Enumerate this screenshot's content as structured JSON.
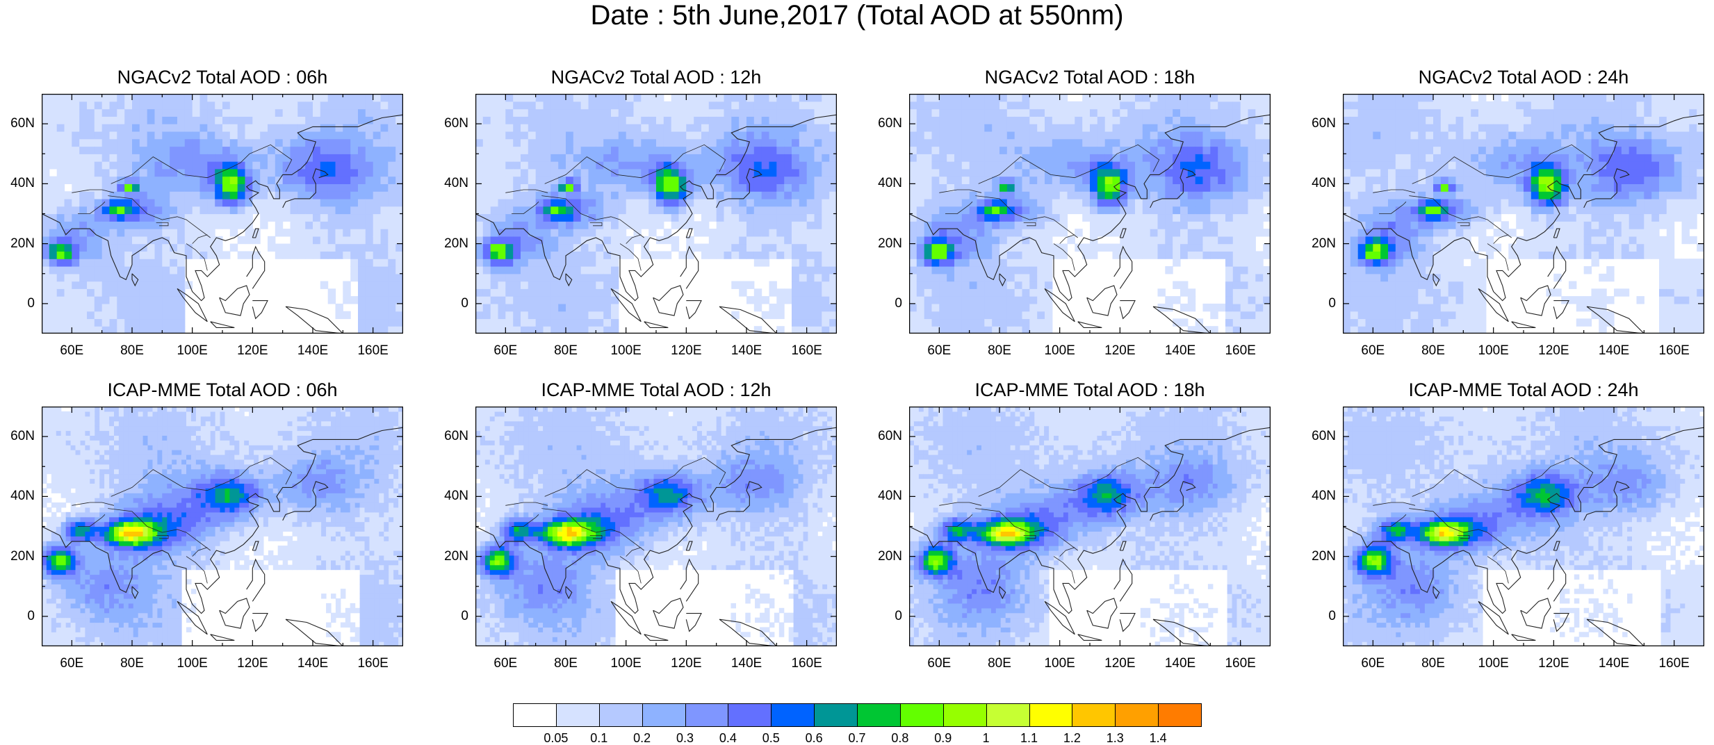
{
  "title": "Date : 5th June,2017 (Total AOD at 550nm)",
  "lat_labels": [
    "60N",
    "40N",
    "20N",
    "0"
  ],
  "lon_labels": [
    "60E",
    "80E",
    "100E",
    "120E",
    "140E",
    "160E"
  ],
  "panels": [
    {
      "title": "NGACv2 Total AOD : 06h"
    },
    {
      "title": "NGACv2 Total AOD : 12h"
    },
    {
      "title": "NGACv2 Total AOD : 18h"
    },
    {
      "title": "NGACv2 Total AOD : 24h"
    },
    {
      "title": "ICAP-MME Total AOD : 06h"
    },
    {
      "title": "ICAP-MME Total AOD : 12h"
    },
    {
      "title": "ICAP-MME Total AOD : 18h"
    },
    {
      "title": "ICAP-MME Total AOD : 24h"
    }
  ],
  "colorbar": {
    "labels": [
      "0.05",
      "0.1",
      "0.2",
      "0.3",
      "0.4",
      "0.5",
      "0.6",
      "0.7",
      "0.8",
      "0.9",
      "1",
      "1.1",
      "1.2",
      "1.3",
      "1.4"
    ],
    "colors": [
      "#ffffff",
      "#d6e2ff",
      "#b5c9ff",
      "#8eb2ff",
      "#7f96ff",
      "#6370ff",
      "#0063ff",
      "#009696",
      "#00c633",
      "#63ff00",
      "#96ff00",
      "#c6ff33",
      "#ffff00",
      "#ffc600",
      "#ffa000",
      "#ff7c00",
      "#ff1900"
    ]
  }
}
